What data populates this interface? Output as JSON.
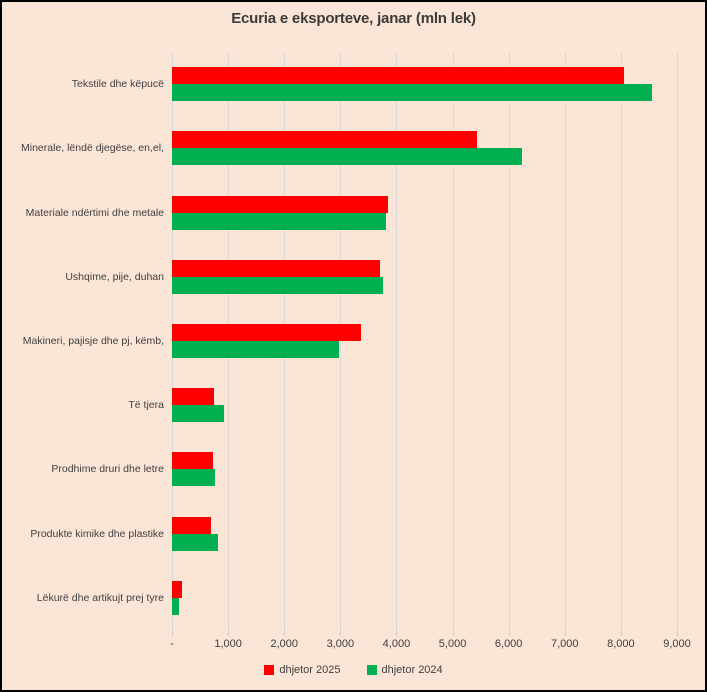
{
  "chart_data": {
    "type": "bar",
    "orientation": "horizontal",
    "title": "Ecuria e eksporteve, janar (mln lek)",
    "categories": [
      "Tekstile dhe këpucë",
      "Minerale, lëndë djegëse, en,el,",
      "Materiale ndërtimi dhe metale",
      "Ushqime, pije, duhan",
      "Makineri, pajisje dhe pj, këmb,",
      "Të tjera",
      "Prodhime druri dhe letre",
      "Produkte kimike dhe plastike",
      "Lëkurë dhe artikujt prej tyre"
    ],
    "series": [
      {
        "name": "dhjetor 2025",
        "color": "#ff0000",
        "values": [
          8050,
          5440,
          3850,
          3710,
          3370,
          740,
          730,
          700,
          170
        ]
      },
      {
        "name": "dhjetor 2024",
        "color": "#00b050",
        "values": [
          8550,
          6240,
          3820,
          3760,
          2970,
          920,
          760,
          820,
          130
        ]
      }
    ],
    "x_axis": {
      "min": 0,
      "max": 9000,
      "tick_step": 1000,
      "tick_labels": [
        "-",
        "1,000",
        "2,000",
        "3,000",
        "4,000",
        "5,000",
        "6,000",
        "7,000",
        "8,000",
        "9,000"
      ]
    },
    "legend_position": "bottom",
    "grid": true,
    "colors": {
      "background": "#fbe5d6",
      "gridline": "#d9d9d9",
      "text": "#404040",
      "border": "#000000"
    }
  }
}
